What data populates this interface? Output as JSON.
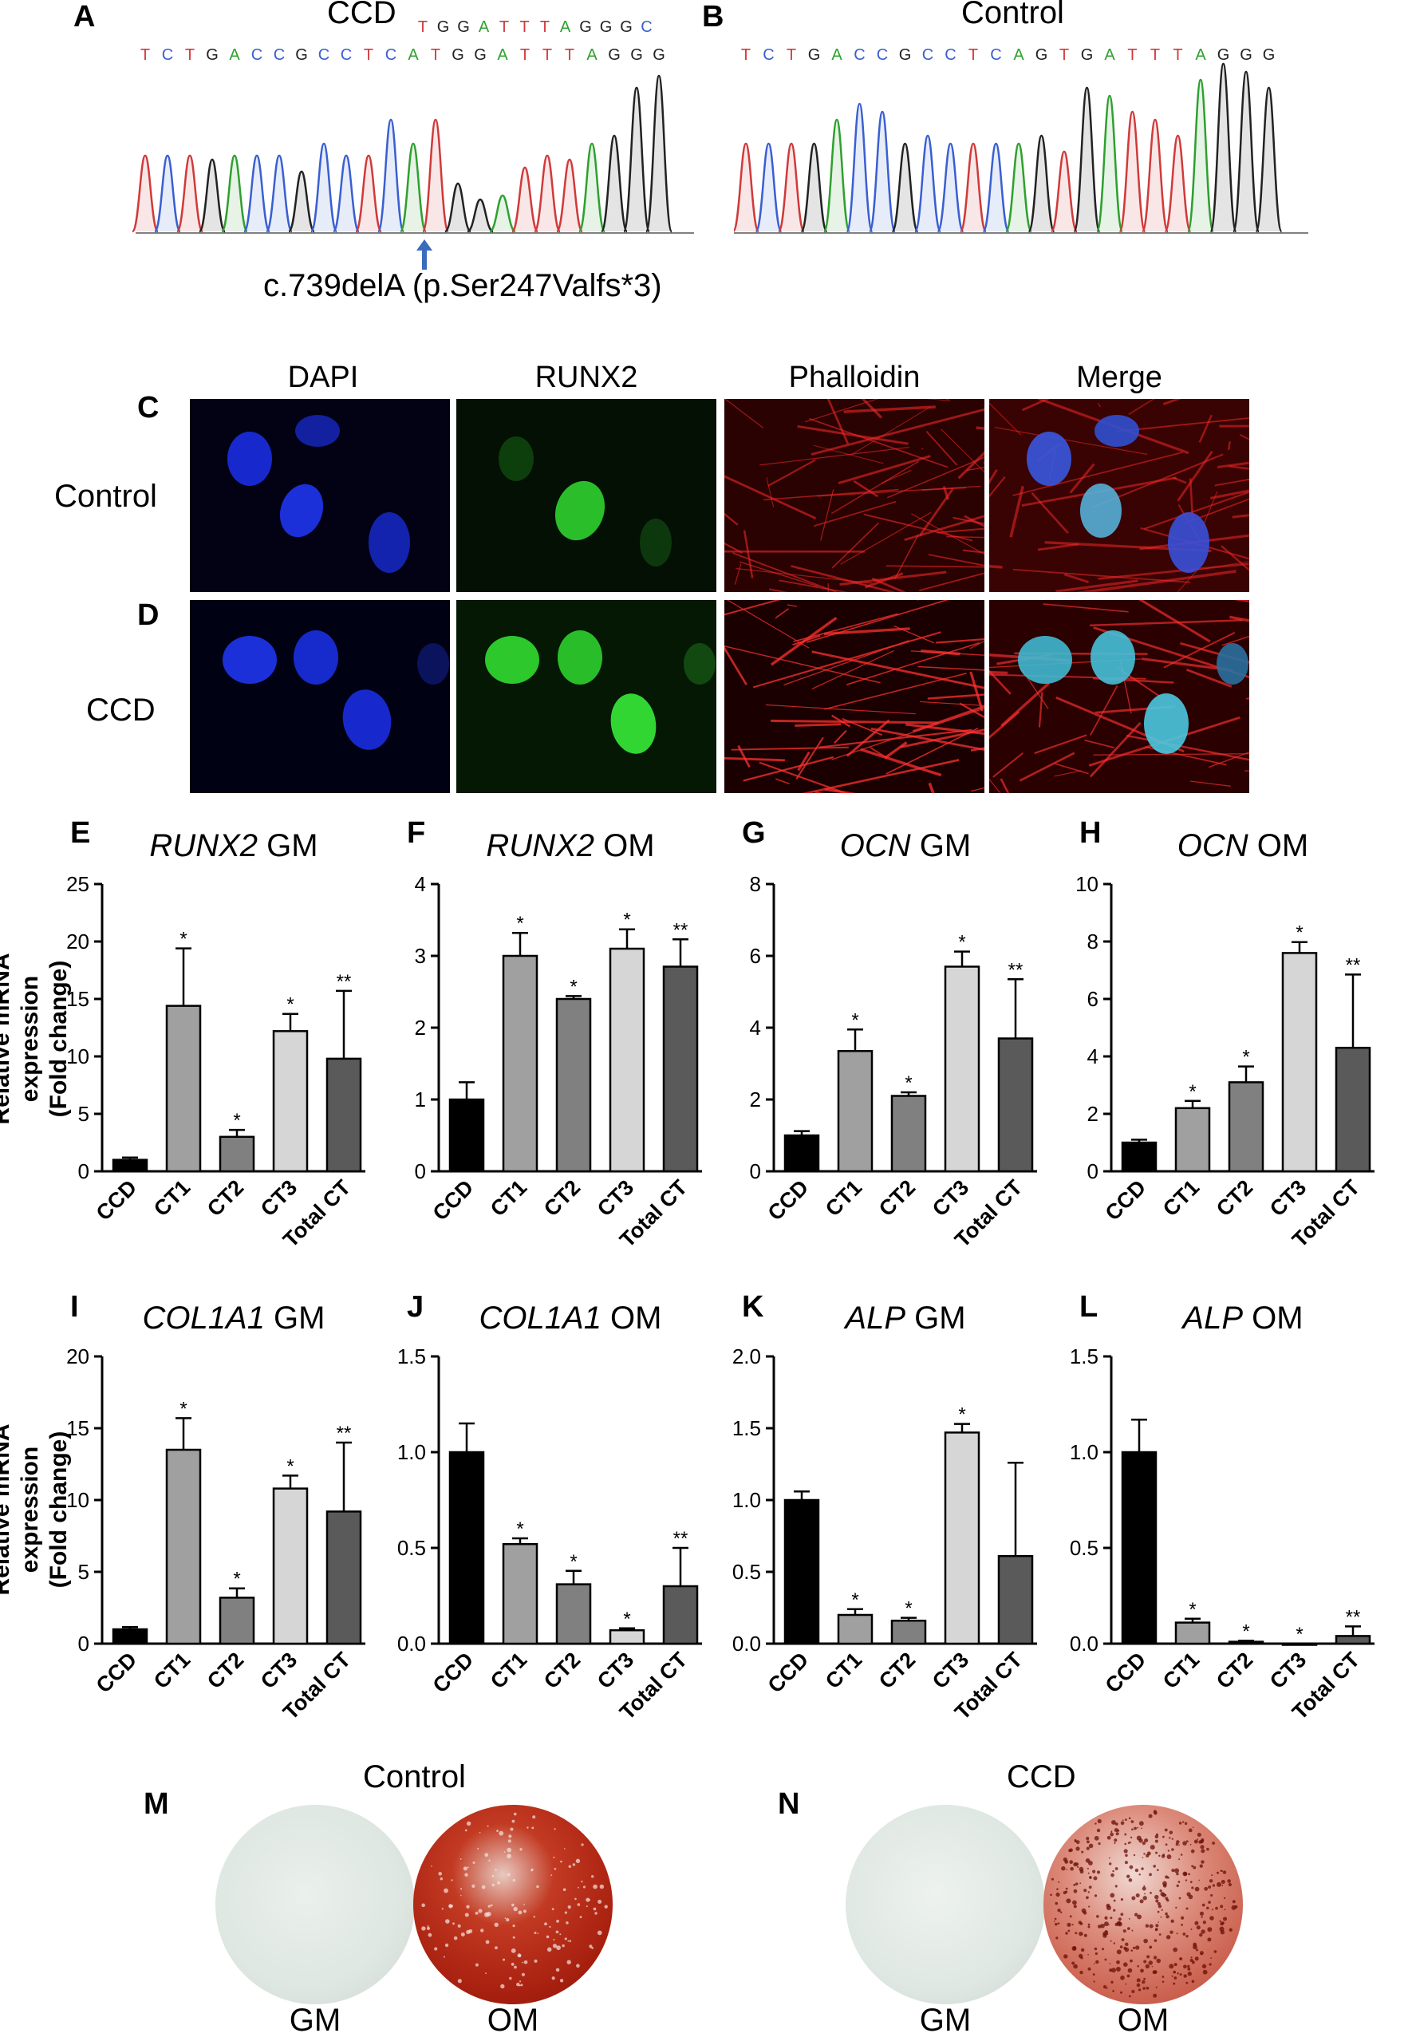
{
  "panels": {
    "A": {
      "letter": "A",
      "title": "CCD",
      "seq_top": "TGGATTTAGGGC",
      "seq_main": "TCTGACCGCCTCATGGATTTAGGG",
      "mutation": "c.739delA (p.Ser247Valfs*3)"
    },
    "B": {
      "letter": "B",
      "title": "Control",
      "seq_main": "TCTGACCGCCTCAGTGATTTAGGG"
    },
    "C": {
      "letter": "C",
      "row_label": "Control"
    },
    "D": {
      "letter": "D",
      "row_label": "CCD"
    },
    "columns": [
      "DAPI",
      "RUNX2",
      "Phalloidin",
      "Merge"
    ],
    "M": {
      "letter": "M",
      "title": "Control",
      "left": "GM",
      "right": "OM"
    },
    "N": {
      "letter": "N",
      "title": "CCD",
      "left": "GM",
      "right": "OM"
    }
  },
  "ylabel_line1": "Relative mRNA expression",
  "ylabel_line2": "(Fold change)",
  "colors": {
    "CCD": "#000000",
    "CT1": "#a0a0a0",
    "CT2": "#808080",
    "CT3": "#d6d6d6",
    "Total CT": "#5a5a5a"
  },
  "chart_data": [
    {
      "type": "bar",
      "letter": "E",
      "gene": "RUNX2",
      "cond": "GM",
      "categories": [
        "CCD",
        "CT1",
        "CT2",
        "CT3",
        "Total CT"
      ],
      "values": [
        1.0,
        14.4,
        3.0,
        12.2,
        9.8
      ],
      "errors": [
        0.2,
        5.0,
        0.6,
        1.5,
        5.9
      ],
      "stars": [
        "",
        "*",
        "*",
        "*",
        "**"
      ],
      "ylim": [
        0,
        25
      ],
      "yticks": [
        "0",
        "5",
        "10",
        "15",
        "20",
        "25"
      ]
    },
    {
      "type": "bar",
      "letter": "F",
      "gene": "RUNX2",
      "cond": "OM",
      "categories": [
        "CCD",
        "CT1",
        "CT2",
        "CT3",
        "Total CT"
      ],
      "values": [
        1.0,
        3.0,
        2.4,
        3.1,
        2.85
      ],
      "errors": [
        0.24,
        0.32,
        0.04,
        0.27,
        0.38
      ],
      "stars": [
        "",
        "*",
        "*",
        "*",
        "**"
      ],
      "ylim": [
        0,
        4
      ],
      "yticks": [
        "0",
        "1",
        "2",
        "3",
        "4"
      ]
    },
    {
      "type": "bar",
      "letter": "G",
      "gene": "OCN",
      "cond": "GM",
      "categories": [
        "CCD",
        "CT1",
        "CT2",
        "CT3",
        "Total CT"
      ],
      "values": [
        1.0,
        3.35,
        2.1,
        5.7,
        3.7
      ],
      "errors": [
        0.12,
        0.6,
        0.1,
        0.42,
        1.65
      ],
      "stars": [
        "",
        "*",
        "*",
        "*",
        "**"
      ],
      "ylim": [
        0,
        8
      ],
      "yticks": [
        "0",
        "2",
        "4",
        "6",
        "8"
      ]
    },
    {
      "type": "bar",
      "letter": "H",
      "gene": "OCN",
      "cond": "OM",
      "categories": [
        "CCD",
        "CT1",
        "CT2",
        "CT3",
        "Total CT"
      ],
      "values": [
        1.0,
        2.2,
        3.1,
        7.6,
        4.3
      ],
      "errors": [
        0.1,
        0.25,
        0.55,
        0.38,
        2.55
      ],
      "stars": [
        "",
        "*",
        "*",
        "*",
        "**"
      ],
      "ylim": [
        0,
        10
      ],
      "yticks": [
        "0",
        "2",
        "4",
        "6",
        "8",
        "10"
      ]
    },
    {
      "type": "bar",
      "letter": "I",
      "gene": "COL1A1",
      "cond": "GM",
      "categories": [
        "CCD",
        "CT1",
        "CT2",
        "CT3",
        "Total CT"
      ],
      "values": [
        1.0,
        13.5,
        3.2,
        10.8,
        9.2
      ],
      "errors": [
        0.15,
        2.2,
        0.65,
        0.9,
        4.8
      ],
      "stars": [
        "",
        "*",
        "*",
        "*",
        "**"
      ],
      "ylim": [
        0,
        20
      ],
      "yticks": [
        "0",
        "5",
        "10",
        "15",
        "20"
      ]
    },
    {
      "type": "bar",
      "letter": "J",
      "gene": "COL1A1",
      "cond": "OM",
      "categories": [
        "CCD",
        "CT1",
        "CT2",
        "CT3",
        "Total CT"
      ],
      "values": [
        1.0,
        0.52,
        0.31,
        0.07,
        0.3
      ],
      "errors": [
        0.15,
        0.03,
        0.07,
        0.01,
        0.2
      ],
      "stars": [
        "",
        "*",
        "*",
        "*",
        "**"
      ],
      "ylim": [
        0,
        1.5
      ],
      "yticks": [
        "0.0",
        "0.5",
        "1.0",
        "1.5"
      ]
    },
    {
      "type": "bar",
      "letter": "K",
      "gene": "ALP",
      "cond": "GM",
      "categories": [
        "CCD",
        "CT1",
        "CT2",
        "CT3",
        "Total CT"
      ],
      "values": [
        1.0,
        0.2,
        0.16,
        1.47,
        0.61
      ],
      "errors": [
        0.06,
        0.04,
        0.02,
        0.06,
        0.65
      ],
      "stars": [
        "",
        "*",
        "*",
        "*",
        ""
      ],
      "ylim": [
        0,
        2.0
      ],
      "yticks": [
        "0.0",
        "0.5",
        "1.0",
        "1.5",
        "2.0"
      ]
    },
    {
      "type": "bar",
      "letter": "L",
      "gene": "ALP",
      "cond": "OM",
      "categories": [
        "CCD",
        "CT1",
        "CT2",
        "CT3",
        "Total CT"
      ],
      "values": [
        1.0,
        0.11,
        0.01,
        0.0,
        0.04
      ],
      "errors": [
        0.17,
        0.02,
        0.005,
        0.0,
        0.05
      ],
      "stars": [
        "",
        "*",
        "*",
        "*",
        "**"
      ],
      "ylim": [
        0,
        1.5
      ],
      "yticks": [
        "0.0",
        "0.5",
        "1.0",
        "1.5"
      ]
    }
  ]
}
